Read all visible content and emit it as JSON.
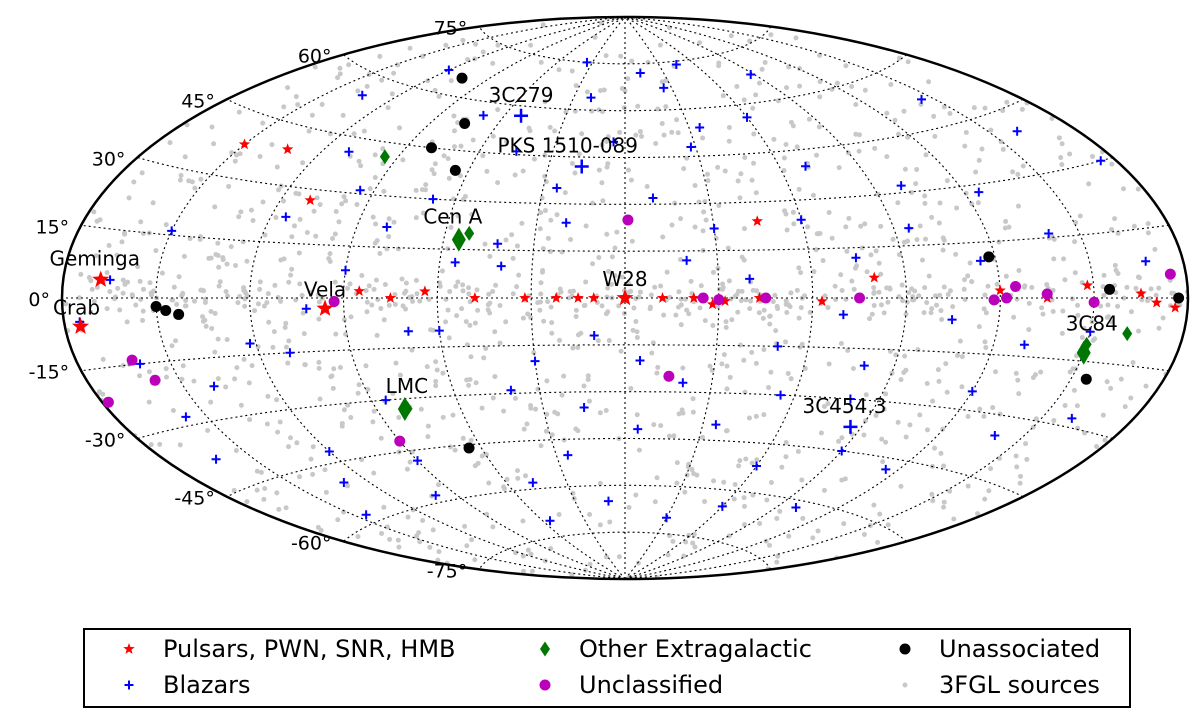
{
  "chart_data": {
    "type": "scatter",
    "projection": "aitoff",
    "grid": true,
    "lat_ticks": [
      {
        "value": 75,
        "label": "75°"
      },
      {
        "value": 60,
        "label": "60°"
      },
      {
        "value": 45,
        "label": "45°"
      },
      {
        "value": 30,
        "label": "30°"
      },
      {
        "value": 15,
        "label": "15°"
      },
      {
        "value": 0,
        "label": "0°"
      },
      {
        "value": -15,
        "label": "-15°"
      },
      {
        "value": -30,
        "label": "-30°"
      },
      {
        "value": -45,
        "label": "-45°"
      },
      {
        "value": -60,
        "label": "-60°"
      },
      {
        "value": -75,
        "label": "-75°"
      }
    ],
    "background_points": 1400,
    "series": [
      {
        "name": "Pulsars, PWN, SNR, HMB",
        "marker": "star",
        "color": "#ff0000",
        "points": [
          [
            150,
            38
          ],
          [
            133,
            39
          ],
          [
            110,
            27
          ],
          [
            85,
            2
          ],
          [
            75,
            0
          ],
          [
            64,
            2
          ],
          [
            48,
            0
          ],
          [
            32,
            0
          ],
          [
            22,
            0
          ],
          [
            15,
            0
          ],
          [
            10,
            0
          ],
          [
            -12,
            0
          ],
          [
            -22,
            0
          ],
          [
            -28,
            -2
          ],
          [
            -32,
            -1
          ],
          [
            -43,
            0
          ],
          [
            -63,
            -1
          ],
          [
            -45,
            24
          ],
          [
            -80,
            6
          ],
          [
            -120,
            2
          ],
          [
            -135,
            0
          ],
          [
            -148,
            3
          ],
          [
            -165,
            1
          ],
          [
            -170,
            -1
          ],
          [
            -176,
            -2
          ]
        ]
      },
      {
        "name": "Blazars",
        "marker": "plus",
        "color": "#0000ff",
        "points": [
          [
            -30,
            22
          ],
          [
            -60,
            24
          ],
          [
            45,
            46
          ],
          [
            -28,
            48
          ],
          [
            20,
            64
          ],
          [
            -25,
            67
          ],
          [
            -60,
            56
          ],
          [
            70,
            56
          ],
          [
            110,
            41
          ],
          [
            95,
            31
          ],
          [
            80,
            21
          ],
          [
            55,
            11
          ],
          [
            60,
            -10
          ],
          [
            40,
            -29
          ],
          [
            25,
            -50
          ],
          [
            10,
            -12
          ],
          [
            -5,
            -42
          ],
          [
            -20,
            -27
          ],
          [
            -35,
            -40
          ],
          [
            -60,
            -52
          ],
          [
            -80,
            -20
          ],
          [
            -90,
            -45
          ],
          [
            -120,
            -25
          ],
          [
            -140,
            -35
          ],
          [
            120,
            -42
          ],
          [
            140,
            -22
          ],
          [
            160,
            -15
          ],
          [
            100,
            -58
          ],
          [
            130,
            -50
          ],
          [
            -100,
            32
          ],
          [
            -140,
            16
          ],
          [
            -160,
            40
          ],
          [
            150,
            16
          ],
          [
            175,
            -5
          ],
          [
            5,
            50
          ],
          [
            -10,
            32
          ],
          [
            -50,
            -15
          ],
          [
            30,
            -20
          ],
          [
            -70,
            -5
          ],
          [
            -115,
            10
          ],
          [
            85,
            -30
          ],
          [
            -150,
            -8
          ],
          [
            115,
            22
          ],
          [
            -12,
            72
          ],
          [
            35,
            75
          ],
          [
            -160,
            -28
          ],
          [
            163,
            -38
          ],
          [
            47,
            -58
          ],
          [
            -45,
            74
          ],
          [
            -75,
            12
          ],
          [
            10,
            -65
          ],
          [
            -115,
            -48
          ],
          [
            90,
            -48
          ],
          [
            -175,
            30
          ],
          [
            120,
            66
          ],
          [
            -70,
            40
          ],
          [
            70,
            -10
          ],
          [
            -40,
            6
          ],
          [
            20,
            24
          ],
          [
            -130,
            -12
          ],
          [
            165,
            4
          ],
          [
            -100,
            -62
          ],
          [
            135,
            55
          ],
          [
            -30,
            -70
          ],
          [
            55,
            -70
          ],
          [
            -145,
            52
          ],
          [
            42,
            17
          ],
          [
            -88,
            68
          ],
          [
            90,
            8
          ],
          [
            -55,
            -30
          ],
          [
            40,
            10
          ],
          [
            -20,
            12
          ],
          [
            15,
            -35
          ],
          [
            -105,
            -6
          ],
          [
            122,
            -12
          ],
          [
            -168,
            8
          ],
          [
            68,
            30
          ],
          [
            -5,
            -20
          ],
          [
            102,
            -3
          ],
          [
            -125,
            28
          ],
          [
            145,
            -58
          ],
          [
            -60,
            -65
          ],
          [
            -95,
            20
          ],
          [
            25,
            35
          ],
          [
            -80,
            -30
          ],
          [
            110,
            -15
          ],
          [
            -35,
            54
          ],
          [
            157,
            -28
          ]
        ]
      },
      {
        "name": "Other Extragalactic",
        "marker": "diamond",
        "color": "#007700",
        "points": [
          [
            -162,
            -8
          ],
          [
            -150,
            -11
          ],
          [
            79,
            -33
          ],
          [
            52,
            20
          ],
          [
            95,
            41
          ]
        ]
      },
      {
        "name": "Unclassified",
        "marker": "circle",
        "color": "#bb00bb",
        "points": [
          [
            -175,
            5
          ],
          [
            -150,
            -1
          ],
          [
            -125,
            3
          ],
          [
            -122,
            0
          ],
          [
            -118,
            -0.5
          ],
          [
            -75,
            0
          ],
          [
            -45,
            0
          ],
          [
            -30,
            -0.5
          ],
          [
            -25,
            0
          ],
          [
            -1,
            25
          ],
          [
            -15,
            -25
          ],
          [
            93,
            -1
          ],
          [
            90,
            -42
          ],
          [
            158,
            -19
          ],
          [
            162,
            -14
          ],
          [
            178,
            -22
          ],
          [
            -135,
            1
          ]
        ]
      },
      {
        "name": "Unassociated",
        "marker": "circle",
        "color": "#000000",
        "points": [
          [
            -177,
            0
          ],
          [
            -155,
            -19
          ],
          [
            -155,
            2
          ],
          [
            -118,
            11
          ],
          [
            65,
            -46
          ],
          [
            80,
            45
          ],
          [
            75,
            53
          ],
          [
            105,
            65
          ],
          [
            65,
            39
          ],
          [
            143,
            -4
          ],
          [
            150,
            -2
          ],
          [
            147,
            -3
          ]
        ]
      }
    ],
    "annotations": [
      {
        "text": "3C279",
        "lon": 52,
        "lat": 57,
        "marker": "plus",
        "color": "#0000ff",
        "big": true
      },
      {
        "text": "PKS 1510-089",
        "lon": 17,
        "lat": 42,
        "marker": "plus",
        "color": "#0000ff",
        "big": true
      },
      {
        "text": "Cen A",
        "lon": 55,
        "lat": 18,
        "marker": "diamond",
        "color": "#007700",
        "big": true
      },
      {
        "text": "W28",
        "lon": 0,
        "lat": 0,
        "marker": "star",
        "color": "#ff0000",
        "big": true
      },
      {
        "text": "Vela",
        "lon": 96,
        "lat": -3,
        "marker": "star",
        "color": "#ff0000",
        "big": true
      },
      {
        "text": "Geminga",
        "lon": 168,
        "lat": 4,
        "marker": "star",
        "color": "#ff0000",
        "big": true
      },
      {
        "text": "Crab",
        "lon": 175,
        "lat": -6,
        "marker": "star",
        "color": "#ff0000",
        "big": true
      },
      {
        "text": "3C84",
        "lon": -150,
        "lat": -13,
        "marker": "diamond",
        "color": "#007700",
        "big": true
      },
      {
        "text": "LMC",
        "lon": 80,
        "lat": -33,
        "marker": "diamond",
        "color": "#007700",
        "big": true
      },
      {
        "text": "3C454.3",
        "lon": -86,
        "lat": -38,
        "marker": "plus",
        "color": "#0000ff",
        "big": true
      }
    ],
    "legend": {
      "placement": "bottom",
      "entries": [
        {
          "label": "Pulsars, PWN, SNR, HMB",
          "marker": "star",
          "color": "#ff0000"
        },
        {
          "label": "Other Extragalactic",
          "marker": "diamond",
          "color": "#007700"
        },
        {
          "label": "Unassociated",
          "marker": "circle",
          "color": "#000000"
        },
        {
          "label": "Blazars",
          "marker": "plus",
          "color": "#0000ff"
        },
        {
          "label": "Unclassified",
          "marker": "circle",
          "color": "#bb00bb"
        },
        {
          "label": "3FGL sources",
          "marker": "dot",
          "color": "#c8c8c8"
        }
      ]
    }
  }
}
